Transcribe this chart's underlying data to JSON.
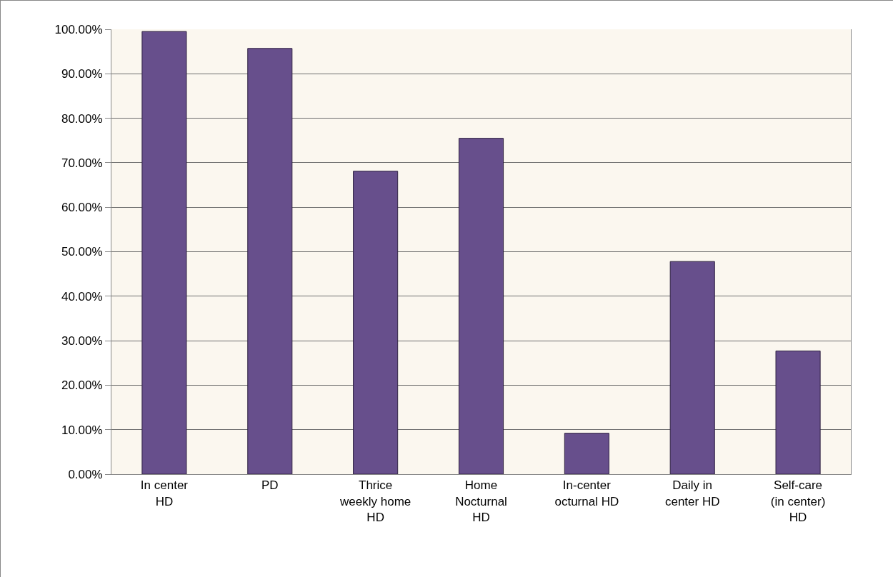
{
  "chart_data": {
    "type": "bar",
    "categories": [
      "In center HD",
      "PD",
      "Thrice weekly home HD",
      "Home Nocturnal HD",
      "In-center octurnal HD",
      "Daily in center HD",
      "Self-care (in center) HD"
    ],
    "values": [
      99.5,
      95.7,
      68.1,
      75.5,
      9.2,
      47.8,
      27.7
    ],
    "color": "#674f8c",
    "ylim": [
      0,
      100
    ],
    "yticks": [
      {
        "value": 0,
        "label": "0.00%"
      },
      {
        "value": 10,
        "label": "10.00%"
      },
      {
        "value": 20,
        "label": "20.00%"
      },
      {
        "value": 30,
        "label": "30.00%"
      },
      {
        "value": 40,
        "label": "40.00%"
      },
      {
        "value": 50,
        "label": "50.00%"
      },
      {
        "value": 60,
        "label": "60.00%"
      },
      {
        "value": 70,
        "label": "70.00%"
      },
      {
        "value": 80,
        "label": "80.00%"
      },
      {
        "value": 90,
        "label": "90.00%"
      },
      {
        "value": 100,
        "label": "100.00%"
      }
    ],
    "grid": "y"
  }
}
